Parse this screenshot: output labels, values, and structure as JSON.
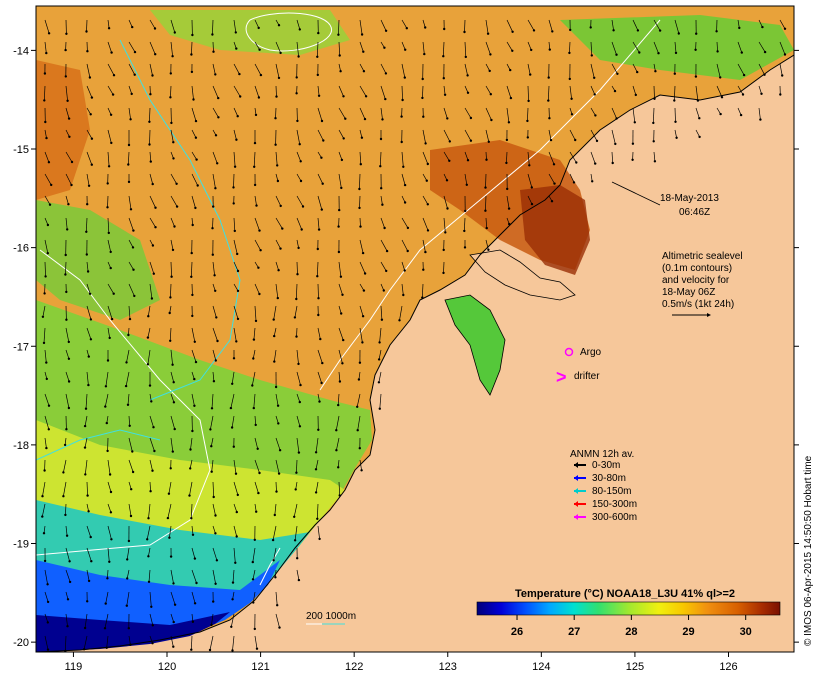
{
  "colors": {
    "land": "#f6c79a",
    "frame": "#000000"
  },
  "axes": {
    "x_ticks": [
      "119",
      "120",
      "121",
      "122",
      "123",
      "124",
      "125",
      "126"
    ],
    "y_ticks": [
      "-14",
      "-15",
      "-16",
      "-17",
      "-18",
      "-19",
      "-20"
    ],
    "x_range": [
      118.6,
      126.7
    ],
    "y_range": [
      -20.1,
      -13.55
    ]
  },
  "annotations": {
    "timestamp_line1": "18-May-2013",
    "timestamp_line2": "06:46Z",
    "altimetric": [
      "Altimetric sealevel",
      "(0.1m contours)",
      "and velocity for",
      "18-May 06Z",
      "0.5m/s (1kt 24h)"
    ],
    "argo_label": "Argo",
    "drifter_label": "drifter",
    "isobath_label": "200  1000m",
    "credit": "© IMOS 06-Apr-2015 14:50:50 Hobart time"
  },
  "legend": {
    "title": "ANMN 12h av.",
    "items": [
      {
        "label": "0-30m",
        "color": "#000000"
      },
      {
        "label": "30-80m",
        "color": "#0000ff"
      },
      {
        "label": "80-150m",
        "color": "#00cccc"
      },
      {
        "label": "150-300m",
        "color": "#ff0000"
      },
      {
        "label": "300-600m",
        "color": "#ff00ff"
      }
    ]
  },
  "colorbar": {
    "title": "Temperature (°C) NOAA18_L3U 41% ql>=2",
    "ticks": [
      "26",
      "27",
      "28",
      "29",
      "30"
    ],
    "min": 25.3,
    "max": 30.6,
    "stops": [
      "#00007a",
      "#0000d8",
      "#0050ff",
      "#00a8ff",
      "#00e0d0",
      "#30e070",
      "#a0e830",
      "#f0f010",
      "#f8c800",
      "#f09010",
      "#d86000",
      "#a82c00",
      "#7a1000"
    ]
  }
}
